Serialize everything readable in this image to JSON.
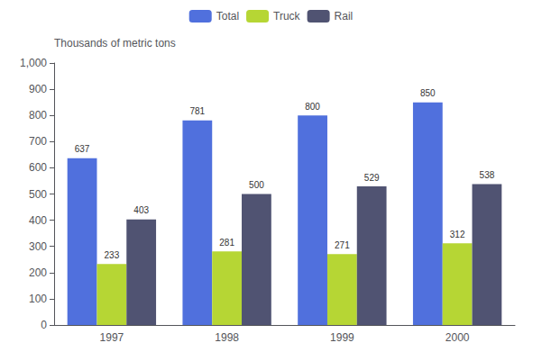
{
  "chart_data": {
    "type": "bar",
    "ylabel": "Thousands of metric tons",
    "categories": [
      "1997",
      "1998",
      "1999",
      "2000"
    ],
    "series": [
      {
        "name": "Total",
        "values": [
          637,
          781,
          800,
          850
        ]
      },
      {
        "name": "Truck",
        "values": [
          233,
          281,
          271,
          312
        ]
      },
      {
        "name": "Rail",
        "values": [
          403,
          500,
          529,
          538
        ]
      }
    ],
    "ylim": [
      0,
      1000
    ],
    "yticks": [
      0,
      100,
      200,
      300,
      400,
      500,
      600,
      700,
      800,
      900,
      {
        "value": 1000,
        "label": "1,000"
      }
    ],
    "data_labels": true,
    "grid": false,
    "legend": "top"
  }
}
